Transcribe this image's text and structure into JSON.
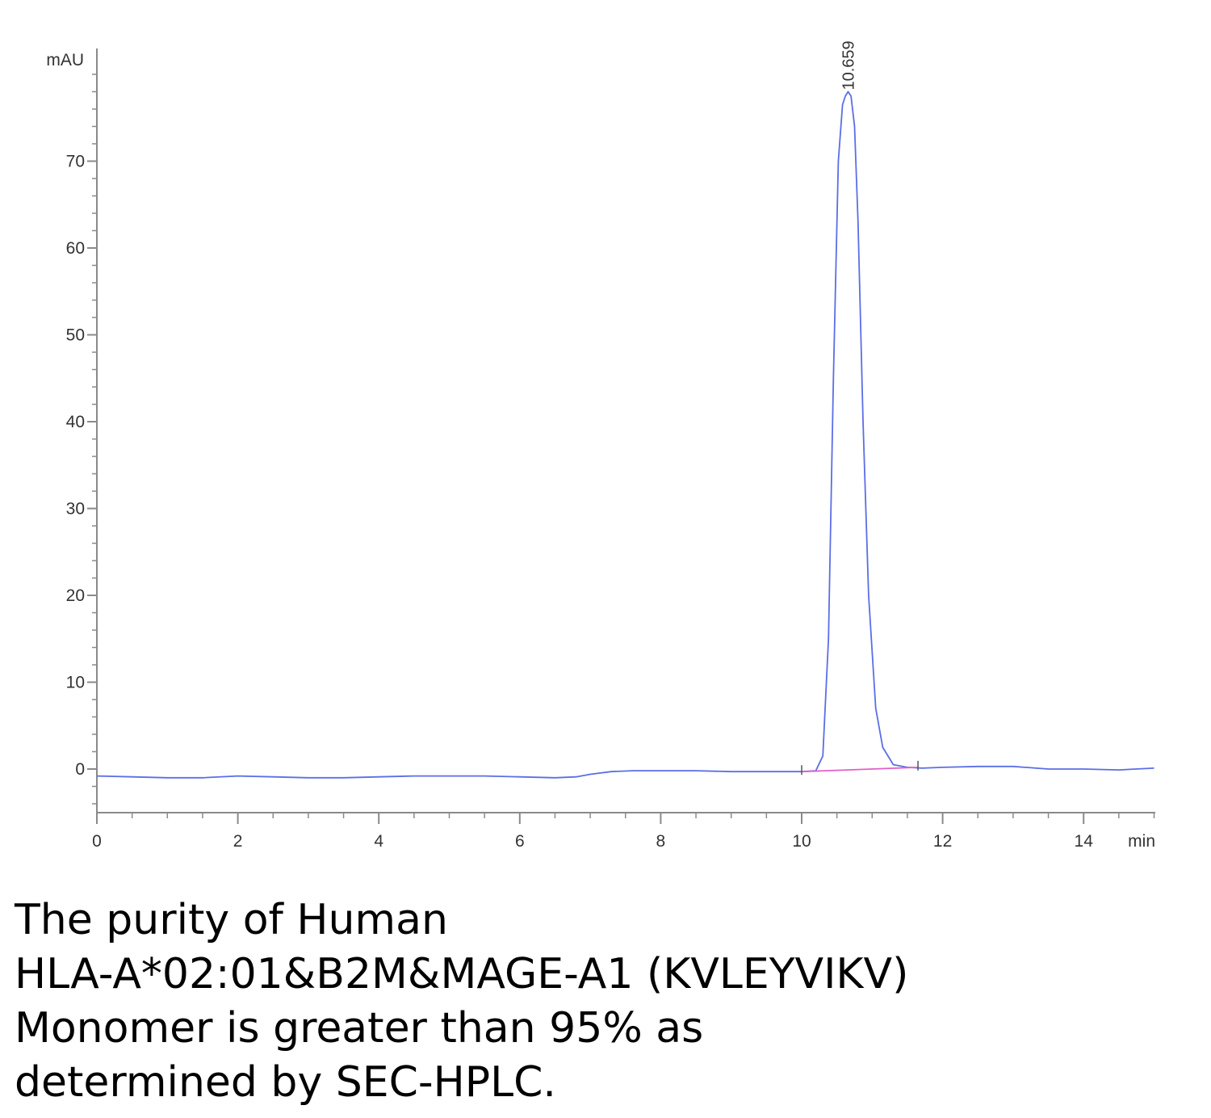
{
  "chart_data": {
    "type": "line",
    "title": "",
    "xlabel": "min",
    "ylabel": "mAU",
    "xlim": [
      0,
      15
    ],
    "ylim": [
      -5,
      80
    ],
    "x_ticks": [
      "0",
      "2",
      "4",
      "6",
      "8",
      "10",
      "12",
      "14"
    ],
    "y_ticks": [
      "0",
      "10",
      "20",
      "30",
      "40",
      "50",
      "60",
      "70"
    ],
    "grid": false,
    "series": [
      {
        "color": "#5b6ee6",
        "x": [
          0,
          0.5,
          1.0,
          1.5,
          2.0,
          2.5,
          3.0,
          3.5,
          4.0,
          4.5,
          5.0,
          5.5,
          6.0,
          6.5,
          6.8,
          7.0,
          7.3,
          7.6,
          8.0,
          8.5,
          9.0,
          9.5,
          10.0,
          10.2,
          10.3,
          10.38,
          10.45,
          10.52,
          10.58,
          10.62,
          10.659,
          10.7,
          10.75,
          10.8,
          10.87,
          10.95,
          11.05,
          11.15,
          11.3,
          11.5,
          11.7,
          12.0,
          12.5,
          13.0,
          13.5,
          14.0,
          14.5,
          15.0
        ],
        "y": [
          -0.8,
          -0.9,
          -1.0,
          -1.0,
          -0.8,
          -0.9,
          -1.0,
          -1.0,
          -0.9,
          -0.8,
          -0.8,
          -0.8,
          -0.9,
          -1.0,
          -0.9,
          -0.6,
          -0.3,
          -0.2,
          -0.2,
          -0.2,
          -0.3,
          -0.3,
          -0.3,
          -0.2,
          1.5,
          15,
          45,
          70,
          76.5,
          77.5,
          78,
          77.5,
          74,
          63,
          40,
          20,
          7,
          2.5,
          0.5,
          0.2,
          0.1,
          0.2,
          0.3,
          0.3,
          0.0,
          0.0,
          -0.1,
          0.1
        ]
      }
    ],
    "baseline": {
      "color": "#e25fc8",
      "x": [
        10.0,
        11.65
      ],
      "y": [
        -0.3,
        0.2
      ]
    },
    "annotations": [
      {
        "text": "10.659",
        "x": 10.659,
        "y": 78
      }
    ]
  },
  "caption": {
    "lines": [
      "The purity of Human",
      "HLA-A*02:01&B2M&MAGE-A1 (KVLEYVIKV)",
      "Monomer is greater than 95% as",
      "determined by SEC-HPLC."
    ]
  }
}
